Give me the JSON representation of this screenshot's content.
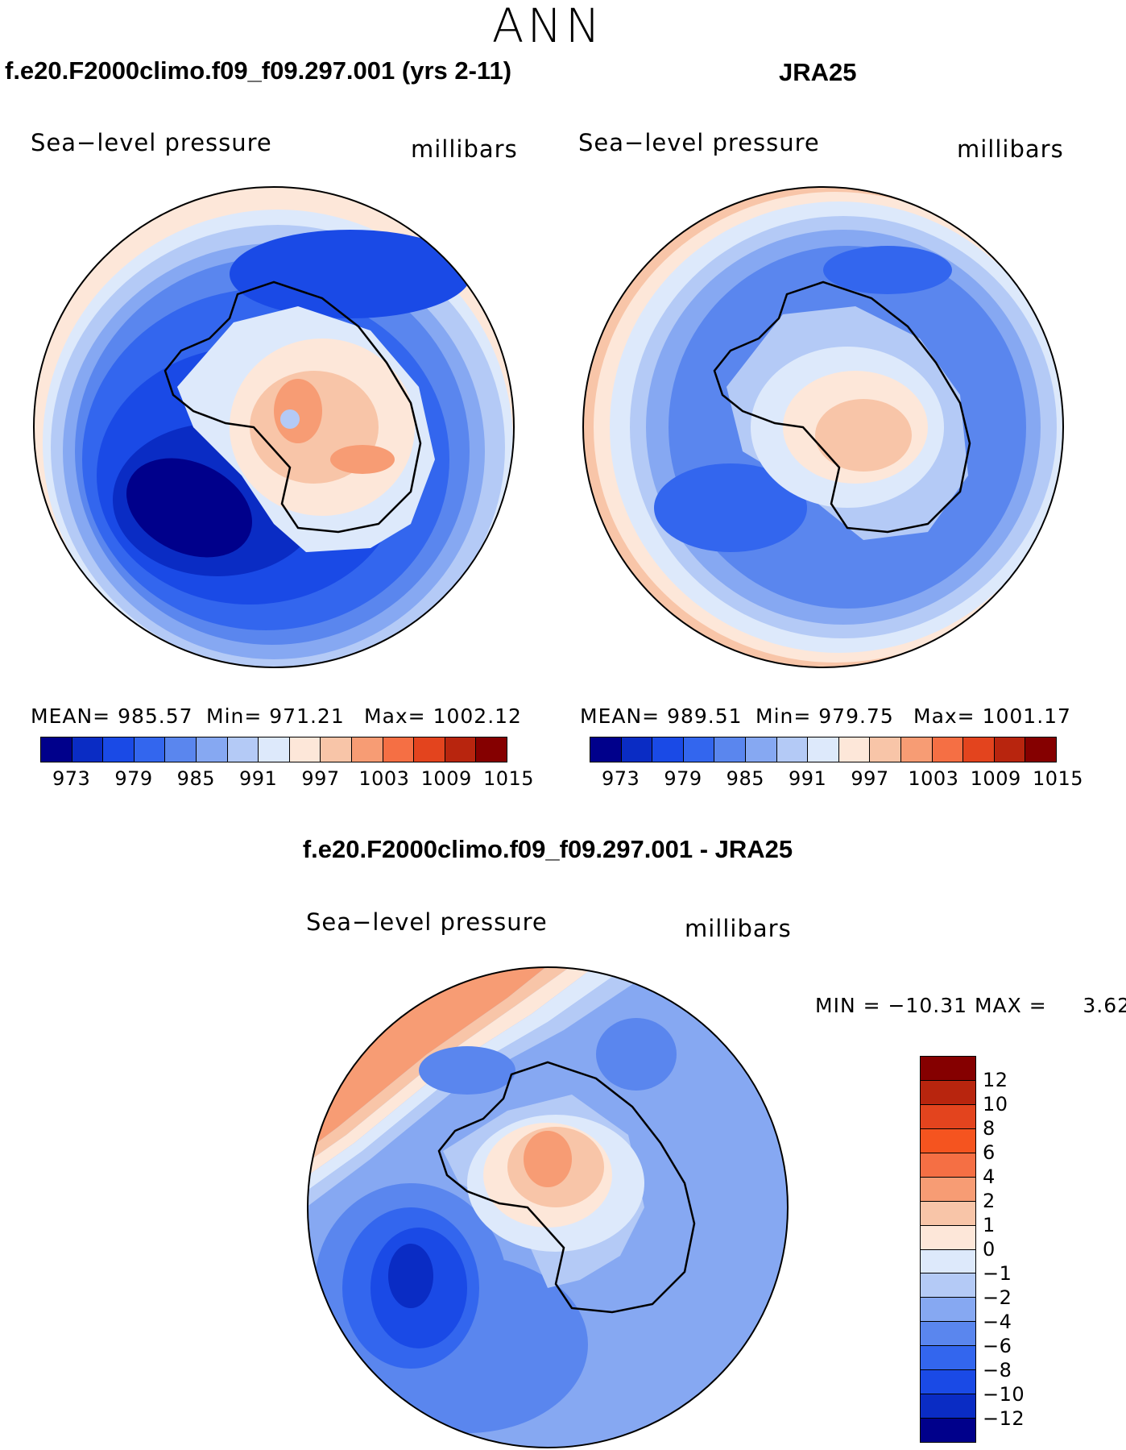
{
  "season": "ANN",
  "panels": [
    {
      "title": "f.e20.F2000climo.f09_f09.297.001 (yrs 2-11)",
      "variable": "Sea−level pressure",
      "units": "millibars",
      "stats": {
        "mean": "MEAN= 985.57",
        "min": "Min= 971.21",
        "max": "Max= 1002.12"
      },
      "colorbar_ticks": [
        "973",
        "979",
        "985",
        "991",
        "997",
        "1003",
        "1009",
        "1015"
      ]
    },
    {
      "title": "JRA25",
      "variable": "Sea−level pressure",
      "units": "millibars",
      "stats": {
        "mean": "MEAN= 989.51",
        "min": "Min= 979.75",
        "max": "Max= 1001.17"
      },
      "colorbar_ticks": [
        "973",
        "979",
        "985",
        "991",
        "997",
        "1003",
        "1009",
        "1015"
      ]
    },
    {
      "title": "f.e20.F2000climo.f09_f09.297.001 - JRA25",
      "variable": "Sea−level pressure",
      "units": "millibars",
      "stats": {
        "minmax": "MIN = −10.31 MAX =     3.62"
      },
      "colorbar_ticks": [
        "12",
        "10",
        "8",
        "6",
        "4",
        "2",
        "1",
        "0",
        "−1",
        "−2",
        "−4",
        "−6",
        "−8",
        "−10",
        "−12"
      ]
    }
  ],
  "colors": {
    "slp_scale": [
      "#00008b",
      "#0a2cc4",
      "#1a4ae6",
      "#3366ee",
      "#5a86ee",
      "#86a8f2",
      "#b4caf6",
      "#dde9fb",
      "#fde7d9",
      "#f8c5a8",
      "#f79c74",
      "#f56f44",
      "#e3441e",
      "#b8250e",
      "#850000"
    ],
    "diff_scale": [
      "#850000",
      "#b8250e",
      "#e3441e",
      "#f5541f",
      "#f56f44",
      "#f79c74",
      "#f8c5a8",
      "#fde7d9",
      "#dde9fb",
      "#b4caf6",
      "#86a8f2",
      "#5a86ee",
      "#3366ee",
      "#1a4ae6",
      "#0a2cc4",
      "#00008b"
    ]
  }
}
